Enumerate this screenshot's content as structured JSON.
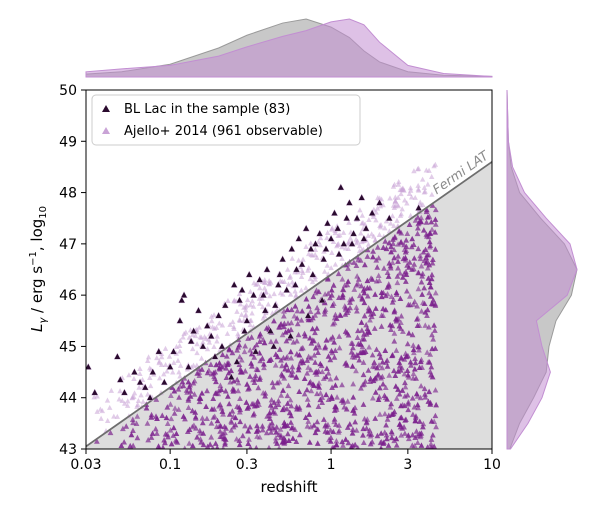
{
  "chart_data": {
    "type": "scatter",
    "xlabel": "redshift",
    "ylabel": "L_γ / erg s⁻¹, log₁₀",
    "x_scale": "log",
    "xlim": [
      0.03,
      10
    ],
    "ylim": [
      43,
      50
    ],
    "x_ticks": [
      0.03,
      0.1,
      0.3,
      1,
      3,
      10
    ],
    "x_tick_labels": [
      "0.03",
      "0.1",
      "0.3",
      "1",
      "3",
      "10"
    ],
    "y_ticks": [
      43,
      44,
      45,
      46,
      47,
      48,
      49,
      50
    ],
    "y_tick_labels": [
      "43",
      "44",
      "45",
      "46",
      "47",
      "48",
      "49",
      "50"
    ],
    "grid": false,
    "legend_position": "top-left",
    "colors": {
      "sample": "#2a0a2e",
      "ajello": "#7a1f8c",
      "ajello_faint": "#c9a3d6",
      "kde_grey": "#9a9a9a",
      "kde_purple": "#c28ed2",
      "limit_line": "#6e6e6e",
      "limit_fill": "#dddddd"
    },
    "annotation": {
      "text": "Fermi LAT",
      "line_start": [
        0.03,
        43.05
      ],
      "line_end": [
        10,
        48.6
      ]
    },
    "series": [
      {
        "name": "BL Lac in the sample (83)",
        "marker": "triangle",
        "points": [
          [
            0.031,
            44.6
          ],
          [
            0.034,
            44.1
          ],
          [
            0.047,
            44.8
          ],
          [
            0.049,
            44.35
          ],
          [
            0.052,
            44.1
          ],
          [
            0.06,
            44.5
          ],
          [
            0.065,
            44.3
          ],
          [
            0.07,
            44.2
          ],
          [
            0.078,
            44.5
          ],
          [
            0.085,
            44.9
          ],
          [
            0.1,
            44.6
          ],
          [
            0.115,
            45.5
          ],
          [
            0.118,
            45.9
          ],
          [
            0.122,
            46.0
          ],
          [
            0.135,
            45.1
          ],
          [
            0.14,
            45.3
          ],
          [
            0.15,
            45.7
          ],
          [
            0.16,
            45.0
          ],
          [
            0.17,
            45.4
          ],
          [
            0.19,
            44.8
          ],
          [
            0.2,
            45.6
          ],
          [
            0.22,
            45.8
          ],
          [
            0.25,
            46.2
          ],
          [
            0.27,
            45.9
          ],
          [
            0.28,
            46.1
          ],
          [
            0.3,
            45.5
          ],
          [
            0.31,
            46.4
          ],
          [
            0.33,
            46.0
          ],
          [
            0.36,
            46.3
          ],
          [
            0.38,
            46.0
          ],
          [
            0.4,
            46.5
          ],
          [
            0.42,
            45.3
          ],
          [
            0.45,
            45.8
          ],
          [
            0.48,
            46.4
          ],
          [
            0.5,
            46.7
          ],
          [
            0.53,
            46.1
          ],
          [
            0.57,
            46.9
          ],
          [
            0.6,
            46.2
          ],
          [
            0.63,
            47.1
          ],
          [
            0.66,
            46.6
          ],
          [
            0.7,
            47.3
          ],
          [
            0.75,
            46.9
          ],
          [
            0.8,
            47.0
          ],
          [
            0.85,
            47.2
          ],
          [
            0.9,
            46.7
          ],
          [
            0.95,
            47.4
          ],
          [
            1.0,
            47.1
          ],
          [
            1.05,
            47.6
          ],
          [
            1.1,
            47.3
          ],
          [
            1.15,
            48.1
          ],
          [
            1.2,
            47.0
          ],
          [
            1.25,
            47.5
          ],
          [
            1.3,
            47.8
          ],
          [
            1.38,
            47.2
          ],
          [
            1.45,
            47.5
          ],
          [
            1.55,
            47.9
          ],
          [
            1.65,
            47.3
          ],
          [
            1.8,
            47.6
          ],
          [
            2.0,
            47.8
          ],
          [
            2.3,
            47.5
          ],
          [
            3.5,
            47.7
          ],
          [
            0.26,
            44.7
          ],
          [
            0.34,
            44.9
          ],
          [
            0.44,
            45.0
          ],
          [
            0.56,
            45.2
          ],
          [
            0.72,
            45.6
          ],
          [
            0.88,
            45.9
          ],
          [
            0.24,
            44.4
          ],
          [
            0.13,
            44.6
          ],
          [
            0.18,
            45.2
          ],
          [
            0.105,
            44.9
          ],
          [
            0.075,
            44.0
          ],
          [
            0.092,
            44.3
          ],
          [
            0.21,
            45.0
          ],
          [
            0.29,
            45.3
          ],
          [
            0.39,
            45.7
          ],
          [
            0.47,
            46.2
          ],
          [
            0.61,
            46.5
          ],
          [
            0.77,
            46.4
          ],
          [
            0.93,
            46.9
          ],
          [
            1.12,
            46.8
          ],
          [
            1.35,
            47.0
          ],
          [
            1.6,
            47.1
          ]
        ]
      },
      {
        "name": "Ajello+ 2014 (961 observable)",
        "marker": "triangle"
      }
    ],
    "marginal_x": {
      "x": [
        0.03,
        0.05,
        0.1,
        0.2,
        0.3,
        0.5,
        0.7,
        1.0,
        1.3,
        1.6,
        2.0,
        3.0,
        5.0,
        10.0
      ],
      "series": [
        {
          "color": "grey",
          "density": [
            0.05,
            0.09,
            0.22,
            0.5,
            0.72,
            0.93,
            1.0,
            0.86,
            0.68,
            0.45,
            0.26,
            0.09,
            0.03,
            0.01
          ]
        },
        {
          "color": "purple",
          "density": [
            0.09,
            0.14,
            0.2,
            0.36,
            0.52,
            0.7,
            0.8,
            0.95,
            1.0,
            0.9,
            0.6,
            0.2,
            0.06,
            0.01
          ]
        }
      ]
    },
    "marginal_y": {
      "y": [
        43,
        43.5,
        44,
        44.5,
        45,
        45.5,
        46,
        46.5,
        47,
        47.5,
        48,
        48.5,
        49,
        49.5,
        50
      ],
      "series": [
        {
          "color": "grey",
          "density": [
            0.04,
            0.18,
            0.38,
            0.56,
            0.6,
            0.7,
            0.92,
            1.0,
            0.82,
            0.48,
            0.18,
            0.06,
            0.02,
            0.01,
            0.0
          ]
        },
        {
          "color": "purple",
          "density": [
            0.05,
            0.3,
            0.5,
            0.62,
            0.5,
            0.42,
            0.86,
            1.0,
            0.9,
            0.56,
            0.25,
            0.08,
            0.02,
            0.01,
            0.0
          ]
        }
      ]
    }
  }
}
